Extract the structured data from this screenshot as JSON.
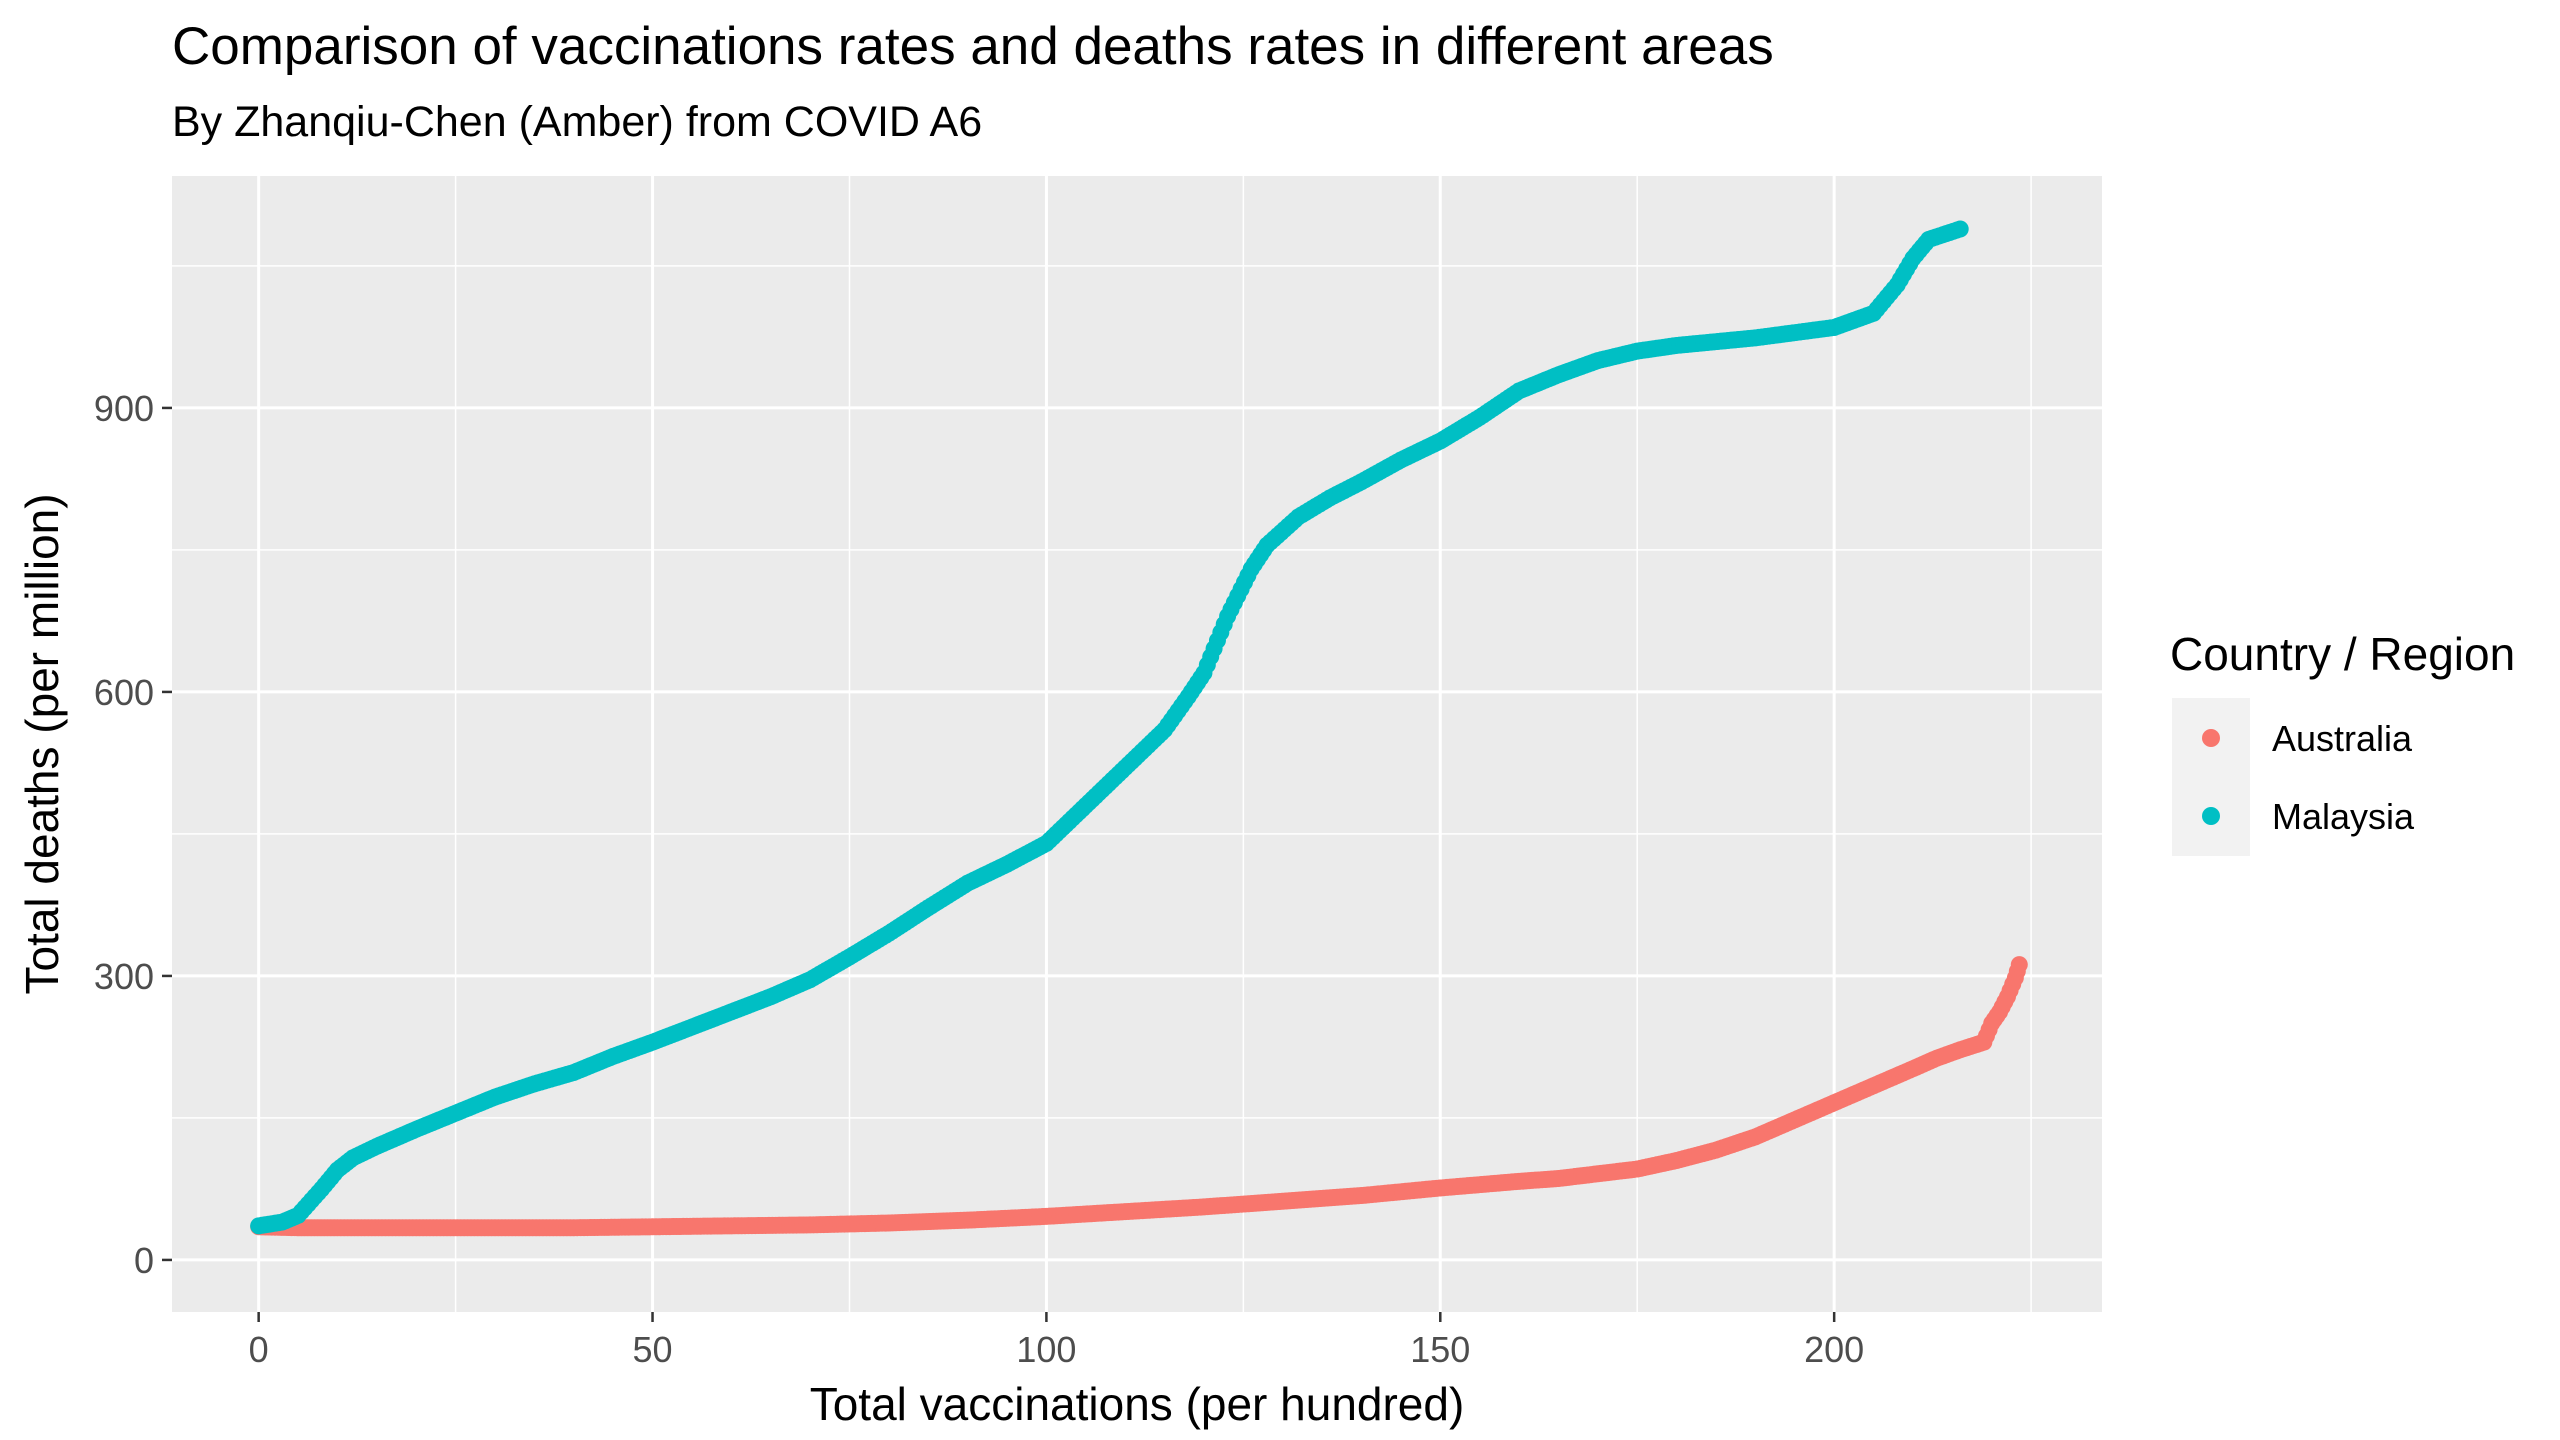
{
  "title": "Comparison of vaccinations rates and deaths rates in different areas",
  "subtitle": "By Zhanqiu-Chen (Amber) from COVID A6",
  "chart_data": {
    "type": "scatter",
    "title": "Comparison of vaccinations rates and deaths rates in different areas",
    "subtitle": "By Zhanqiu-Chen (Amber) from COVID A6",
    "xlabel": "Total vaccinations (per hundred)",
    "ylabel": "Total deaths (per million)",
    "xlim": [
      -11,
      234
    ],
    "ylim": [
      -55,
      1145
    ],
    "xticks": [
      0,
      50,
      100,
      150,
      200
    ],
    "yticks": [
      0,
      300,
      600,
      900
    ],
    "grid": true,
    "background": "#ebebeb",
    "legend": {
      "title": "Country / Region",
      "position": "right"
    },
    "series": [
      {
        "name": "Australia",
        "color": "#F8766D",
        "points": [
          [
            0,
            35
          ],
          [
            5,
            34
          ],
          [
            10,
            34
          ],
          [
            20,
            34
          ],
          [
            30,
            34
          ],
          [
            40,
            34
          ],
          [
            50,
            35
          ],
          [
            60,
            36
          ],
          [
            70,
            37
          ],
          [
            80,
            39
          ],
          [
            90,
            42
          ],
          [
            100,
            46
          ],
          [
            110,
            51
          ],
          [
            120,
            56
          ],
          [
            130,
            62
          ],
          [
            140,
            68
          ],
          [
            150,
            76
          ],
          [
            160,
            83
          ],
          [
            165,
            86
          ],
          [
            170,
            91
          ],
          [
            175,
            96
          ],
          [
            180,
            105
          ],
          [
            185,
            116
          ],
          [
            190,
            130
          ],
          [
            195,
            148
          ],
          [
            200,
            166
          ],
          [
            205,
            184
          ],
          [
            210,
            202
          ],
          [
            213,
            213
          ],
          [
            216,
            222
          ],
          [
            219,
            230
          ],
          [
            220,
            250
          ],
          [
            221,
            262
          ],
          [
            222,
            278
          ],
          [
            223,
            298
          ],
          [
            223.5,
            312
          ]
        ]
      },
      {
        "name": "Malaysia",
        "color": "#00BFC4",
        "points": [
          [
            0,
            36
          ],
          [
            3,
            40
          ],
          [
            5,
            47
          ],
          [
            8,
            75
          ],
          [
            10,
            95
          ],
          [
            12,
            108
          ],
          [
            15,
            120
          ],
          [
            20,
            138
          ],
          [
            25,
            155
          ],
          [
            30,
            172
          ],
          [
            35,
            186
          ],
          [
            40,
            198
          ],
          [
            45,
            215
          ],
          [
            50,
            230
          ],
          [
            55,
            246
          ],
          [
            60,
            262
          ],
          [
            65,
            278
          ],
          [
            70,
            296
          ],
          [
            75,
            320
          ],
          [
            80,
            345
          ],
          [
            85,
            372
          ],
          [
            90,
            398
          ],
          [
            95,
            418
          ],
          [
            100,
            440
          ],
          [
            105,
            480
          ],
          [
            110,
            520
          ],
          [
            115,
            560
          ],
          [
            118,
            595
          ],
          [
            120,
            620
          ],
          [
            123,
            680
          ],
          [
            126,
            730
          ],
          [
            128,
            755
          ],
          [
            132,
            785
          ],
          [
            136,
            805
          ],
          [
            140,
            822
          ],
          [
            145,
            845
          ],
          [
            150,
            865
          ],
          [
            155,
            890
          ],
          [
            160,
            918
          ],
          [
            165,
            935
          ],
          [
            170,
            950
          ],
          [
            175,
            960
          ],
          [
            180,
            966
          ],
          [
            190,
            974
          ],
          [
            200,
            985
          ],
          [
            205,
            1000
          ],
          [
            208,
            1030
          ],
          [
            210,
            1058
          ],
          [
            212,
            1078
          ],
          [
            216,
            1089
          ]
        ]
      }
    ]
  }
}
